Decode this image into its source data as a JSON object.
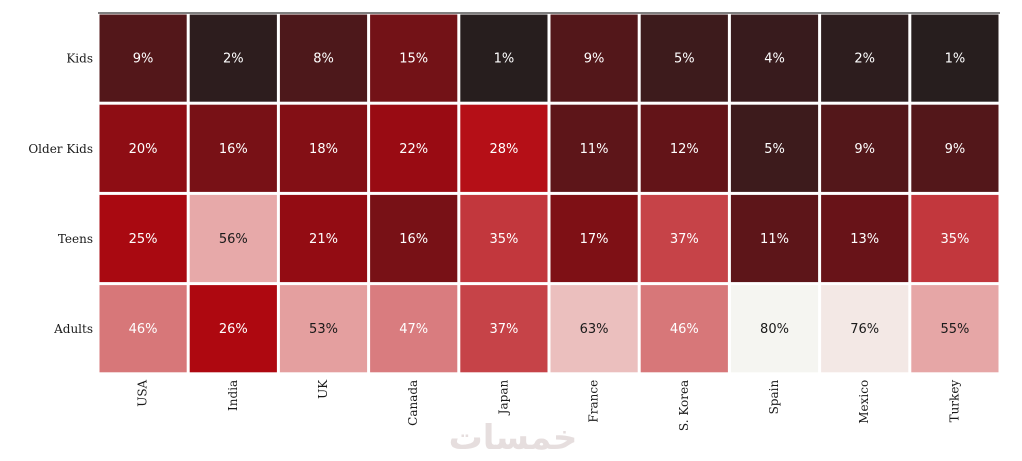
{
  "chart_data": {
    "type": "heatmap",
    "rows": [
      "Kids",
      "Older Kids",
      "Teens",
      "Adults"
    ],
    "columns": [
      "USA",
      "India",
      "UK",
      "Canada",
      "Japan",
      "France",
      "S. Korea",
      "Spain",
      "Mexico",
      "Turkey"
    ],
    "values": [
      [
        9,
        2,
        8,
        15,
        1,
        9,
        5,
        4,
        2,
        1
      ],
      [
        20,
        16,
        18,
        22,
        28,
        11,
        12,
        5,
        9,
        9
      ],
      [
        25,
        56,
        21,
        16,
        35,
        17,
        37,
        11,
        13,
        35
      ],
      [
        46,
        26,
        53,
        47,
        37,
        63,
        46,
        80,
        76,
        55
      ]
    ],
    "value_suffix": "%",
    "color_scale": [
      "#221f1f",
      "#b20710",
      "#e5a1a1",
      "#f5f5f1"
    ]
  },
  "watermark": "خمسات"
}
